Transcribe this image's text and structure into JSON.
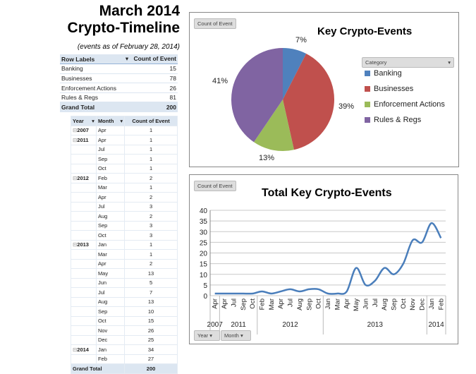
{
  "header": {
    "title_line1": "March 2014",
    "title_line2": "Crypto-Timeline",
    "note": "(events as of February 28, 2014)"
  },
  "summary_table": {
    "col1": "Row Labels",
    "col2": "Count of Event",
    "rows": [
      {
        "label": "Banking",
        "value": "15"
      },
      {
        "label": "Businesses",
        "value": "78"
      },
      {
        "label": "Enforcement Actions",
        "value": "26"
      },
      {
        "label": "Rules & Regs",
        "value": "81"
      }
    ],
    "total_label": "Grand Total",
    "total_value": "200"
  },
  "detail_table": {
    "col_year": "Year",
    "col_month": "Month",
    "col_count": "Count of Event",
    "total_label": "Grand Total",
    "total_value": "200",
    "rows": [
      {
        "year": "2007",
        "month": "Apr",
        "count": "1"
      },
      {
        "year": "2011",
        "month": "Apr",
        "count": "1"
      },
      {
        "year": "",
        "month": "Jul",
        "count": "1"
      },
      {
        "year": "",
        "month": "Sep",
        "count": "1"
      },
      {
        "year": "",
        "month": "Oct",
        "count": "1"
      },
      {
        "year": "2012",
        "month": "Feb",
        "count": "2"
      },
      {
        "year": "",
        "month": "Mar",
        "count": "1"
      },
      {
        "year": "",
        "month": "Apr",
        "count": "2"
      },
      {
        "year": "",
        "month": "Jul",
        "count": "3"
      },
      {
        "year": "",
        "month": "Aug",
        "count": "2"
      },
      {
        "year": "",
        "month": "Sep",
        "count": "3"
      },
      {
        "year": "",
        "month": "Oct",
        "count": "3"
      },
      {
        "year": "2013",
        "month": "Jan",
        "count": "1"
      },
      {
        "year": "",
        "month": "Mar",
        "count": "1"
      },
      {
        "year": "",
        "month": "Apr",
        "count": "2"
      },
      {
        "year": "",
        "month": "May",
        "count": "13"
      },
      {
        "year": "",
        "month": "Jun",
        "count": "5"
      },
      {
        "year": "",
        "month": "Jul",
        "count": "7"
      },
      {
        "year": "",
        "month": "Aug",
        "count": "13"
      },
      {
        "year": "",
        "month": "Sep",
        "count": "10"
      },
      {
        "year": "",
        "month": "Oct",
        "count": "15"
      },
      {
        "year": "",
        "month": "Nov",
        "count": "26"
      },
      {
        "year": "",
        "month": "Dec",
        "count": "25"
      },
      {
        "year": "2014",
        "month": "Jan",
        "count": "34"
      },
      {
        "year": "",
        "month": "Feb",
        "count": "27"
      }
    ]
  },
  "chart_data": [
    {
      "type": "pie",
      "title": "Key Crypto-Events",
      "field_button": "Count of Event",
      "legend_button": "Category",
      "legend_position": "right",
      "categories": [
        "Banking",
        "Businesses",
        "Enforcement Actions",
        "Rules & Regs"
      ],
      "values": [
        15,
        78,
        26,
        81
      ],
      "labels": [
        "7%",
        "39%",
        "13%",
        "41%"
      ],
      "colors": [
        "#4F81BD",
        "#C0504D",
        "#9BBB59",
        "#8064A2"
      ]
    },
    {
      "type": "line",
      "title": "Total Key Crypto-Events",
      "field_button": "Count of Event",
      "axis_buttons": [
        "Year",
        "Month"
      ],
      "months": [
        "Apr",
        "Apr",
        "Jul",
        "Sep",
        "Oct",
        "Feb",
        "Mar",
        "Apr",
        "Jul",
        "Aug",
        "Sep",
        "Oct",
        "Jan",
        "Mar",
        "Apr",
        "May",
        "Jun",
        "Jul",
        "Aug",
        "Sep",
        "Oct",
        "Nov",
        "Dec",
        "Jan",
        "Feb"
      ],
      "year_groups": [
        {
          "label": "2007",
          "count": 1
        },
        {
          "label": "2011",
          "count": 4
        },
        {
          "label": "2012",
          "count": 7
        },
        {
          "label": "2013",
          "count": 11
        },
        {
          "label": "2014",
          "count": 2
        }
      ],
      "values": [
        1,
        1,
        1,
        1,
        1,
        2,
        1,
        2,
        3,
        2,
        3,
        3,
        1,
        1,
        2,
        13,
        5,
        7,
        13,
        10,
        15,
        26,
        25,
        34,
        27
      ],
      "yticks": [
        0,
        5,
        10,
        15,
        20,
        25,
        30,
        35,
        40
      ],
      "ylim": [
        0,
        40
      ],
      "grid": true,
      "legend": false,
      "color": "#4A7EBB"
    }
  ]
}
